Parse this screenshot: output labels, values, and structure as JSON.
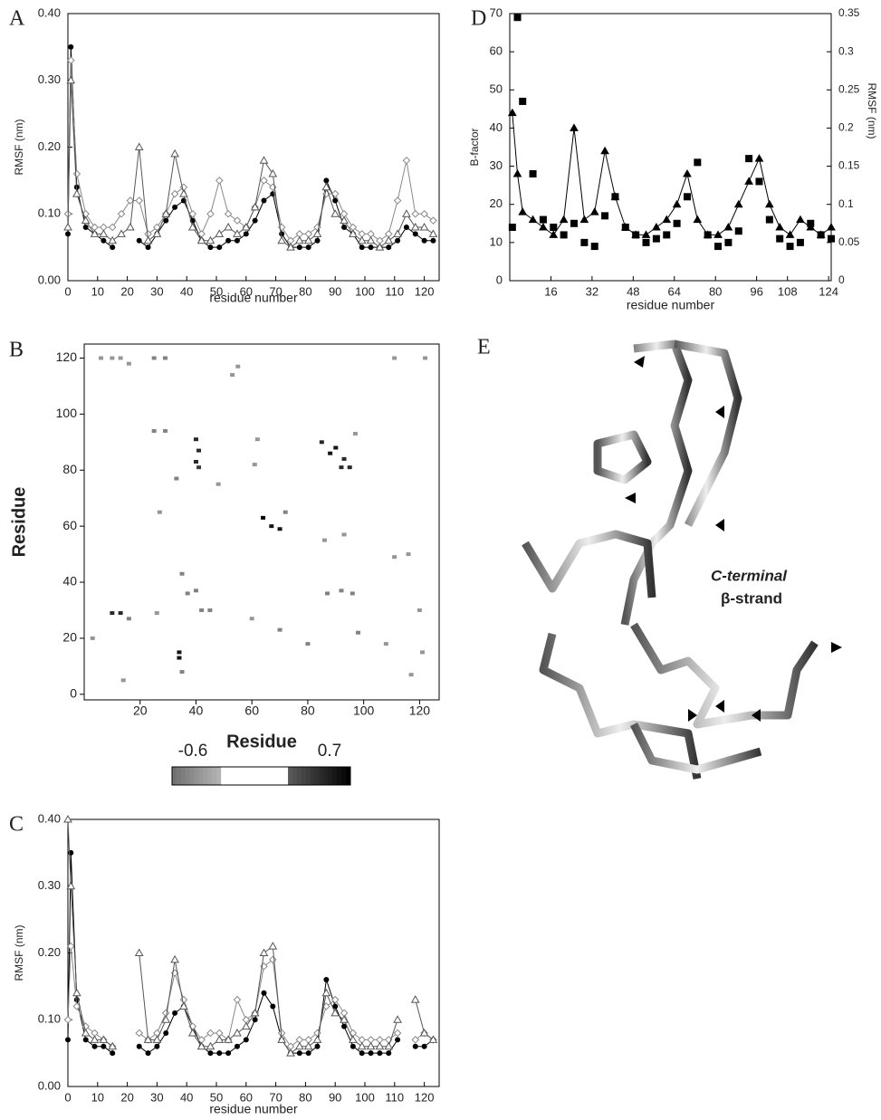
{
  "chart_data": [
    {
      "type": "line",
      "panel": "A",
      "ylabel": "RMSF (nm)",
      "xlabel": "residue number",
      "xlim": [
        0,
        125
      ],
      "xticks": [
        0,
        10,
        20,
        30,
        40,
        50,
        60,
        70,
        80,
        90,
        100,
        110,
        120
      ],
      "ylim": [
        0,
        0.4
      ],
      "yticks": [
        {
          "value": 0,
          "label": "0.00"
        },
        {
          "value": 0.1,
          "label": "0.10"
        },
        {
          "value": 0.2,
          "label": "0.20"
        },
        {
          "value": 0.3,
          "label": "0.30"
        },
        {
          "value": 0.4,
          "label": "0.40"
        }
      ],
      "x": [
        0,
        1,
        3,
        6,
        9,
        12,
        15,
        18,
        21,
        24,
        27,
        30,
        33,
        36,
        39,
        42,
        45,
        48,
        51,
        54,
        57,
        60,
        63,
        66,
        69,
        72,
        75,
        78,
        81,
        84,
        87,
        90,
        93,
        96,
        99,
        102,
        105,
        108,
        111,
        114,
        117,
        120,
        123
      ],
      "series": [
        {
          "color": "#000000",
          "marker": "circle",
          "values": [
            0.07,
            0.35,
            0.14,
            0.08,
            0.07,
            0.06,
            0.05,
            null,
            null,
            0.06,
            0.05,
            0.07,
            0.09,
            0.11,
            0.12,
            0.09,
            0.06,
            0.05,
            0.05,
            0.06,
            0.06,
            0.07,
            0.09,
            0.12,
            0.13,
            0.07,
            0.05,
            0.05,
            0.05,
            0.06,
            0.15,
            0.12,
            0.08,
            0.07,
            0.05,
            0.05,
            0.05,
            0.05,
            0.06,
            0.08,
            0.07,
            0.06,
            0.06
          ]
        },
        {
          "color": "#888888",
          "marker": "diamond",
          "values": [
            0.1,
            0.33,
            0.16,
            0.1,
            0.08,
            0.08,
            0.08,
            0.1,
            0.12,
            0.12,
            0.07,
            0.08,
            0.1,
            0.13,
            0.14,
            0.1,
            0.07,
            0.1,
            0.15,
            0.1,
            0.09,
            0.08,
            0.11,
            0.15,
            0.14,
            0.08,
            0.06,
            0.07,
            0.07,
            0.08,
            0.13,
            0.13,
            0.1,
            0.08,
            0.07,
            0.07,
            0.06,
            0.07,
            0.12,
            0.18,
            0.1,
            0.1,
            0.09
          ]
        },
        {
          "color": "#555555",
          "marker": "triangle",
          "values": [
            0.08,
            0.3,
            0.13,
            0.09,
            0.07,
            0.07,
            0.06,
            0.07,
            0.08,
            0.2,
            0.06,
            0.07,
            0.1,
            0.19,
            0.13,
            0.08,
            0.06,
            0.06,
            0.07,
            0.08,
            0.07,
            0.08,
            0.11,
            0.18,
            0.16,
            0.06,
            0.05,
            0.06,
            0.06,
            0.07,
            0.14,
            0.1,
            0.09,
            0.07,
            0.06,
            0.06,
            0.05,
            0.06,
            0.07,
            0.1,
            0.08,
            0.08,
            0.07
          ]
        }
      ]
    },
    {
      "type": "line",
      "panel": "D",
      "ylabel": "B-factor",
      "y2label": "RMSF (nm)",
      "xlabel": "residue number",
      "xlim": [
        0,
        125
      ],
      "xticks": [
        16,
        32,
        48,
        64,
        80,
        96,
        108,
        124
      ],
      "ylim": [
        0,
        70
      ],
      "yticks": [
        0,
        10,
        20,
        30,
        40,
        50,
        60,
        70
      ],
      "y2lim": [
        0,
        0.35
      ],
      "y2ticks": [
        0,
        0.05,
        0.1,
        0.15,
        0.2,
        0.25,
        0.3,
        0.35
      ],
      "x": [
        1,
        3,
        5,
        9,
        13,
        17,
        21,
        25,
        29,
        33,
        37,
        41,
        45,
        49,
        53,
        57,
        61,
        65,
        69,
        73,
        77,
        81,
        85,
        89,
        93,
        97,
        101,
        105,
        109,
        113,
        117,
        121,
        125
      ],
      "series": [
        {
          "color": "#000000",
          "marker": "square",
          "noline": true,
          "values": [
            14,
            69,
            47,
            28,
            16,
            14,
            12,
            15,
            10,
            9,
            17,
            22,
            14,
            12,
            10,
            11,
            12,
            15,
            22,
            31,
            12,
            9,
            10,
            13,
            32,
            26,
            16,
            11,
            9,
            10,
            15,
            12,
            11
          ]
        },
        {
          "color": "#000000",
          "marker": "solid-triangle",
          "axis": "y2",
          "values": [
            0.22,
            0.14,
            0.09,
            0.08,
            0.07,
            0.06,
            0.08,
            0.2,
            0.08,
            0.09,
            0.17,
            0.11,
            0.07,
            0.06,
            0.06,
            0.07,
            0.08,
            0.1,
            0.14,
            0.08,
            0.06,
            0.06,
            0.07,
            0.1,
            0.13,
            0.16,
            0.1,
            0.07,
            0.06,
            0.08,
            0.07,
            0.06,
            0.07
          ]
        }
      ]
    },
    {
      "type": "scatter",
      "panel": "B",
      "ylabel": "Residue",
      "xlabel": "Residue",
      "xlim": [
        0,
        127
      ],
      "xticks": [
        20,
        40,
        60,
        80,
        100,
        120
      ],
      "ylim": [
        -2,
        125
      ],
      "yticks": [
        0,
        20,
        40,
        60,
        80,
        100,
        120
      ],
      "colorbar_range": [
        -0.6,
        0.7
      ],
      "x": [
        6,
        10,
        13,
        25,
        29,
        55,
        53,
        111,
        122,
        16,
        25,
        29,
        40,
        41,
        40,
        41,
        33,
        48,
        62,
        61,
        64,
        67,
        70,
        72,
        27,
        85,
        88,
        90,
        93,
        95,
        92,
        97,
        86,
        93,
        35,
        37,
        40,
        42,
        45,
        10,
        13,
        16,
        26,
        34,
        34,
        35,
        14,
        70,
        80,
        87,
        92,
        96,
        98,
        111,
        116,
        120,
        121,
        117,
        108,
        60,
        3
      ],
      "y": [
        120,
        120,
        120,
        120,
        120,
        117,
        114,
        120,
        120,
        118,
        94,
        94,
        91,
        87,
        83,
        81,
        77,
        75,
        91,
        82,
        63,
        60,
        59,
        65,
        65,
        90,
        86,
        88,
        84,
        81,
        81,
        93,
        55,
        57,
        43,
        36,
        37,
        30,
        30,
        29,
        29,
        27,
        29,
        15,
        13,
        8,
        5,
        23,
        18,
        36,
        37,
        36,
        22,
        49,
        50,
        30,
        15,
        7,
        18,
        27,
        20
      ],
      "values": [
        -0.4,
        -0.4,
        -0.4,
        -0.5,
        -0.5,
        -0.4,
        -0.4,
        -0.4,
        -0.4,
        -0.4,
        -0.5,
        -0.5,
        0.5,
        0.5,
        0.5,
        0.4,
        -0.5,
        -0.4,
        -0.4,
        -0.4,
        0.7,
        0.6,
        0.6,
        -0.5,
        -0.4,
        0.5,
        0.6,
        0.6,
        0.5,
        0.5,
        0.5,
        -0.4,
        -0.4,
        -0.4,
        -0.5,
        -0.5,
        -0.5,
        -0.5,
        -0.5,
        0.5,
        0.5,
        -0.5,
        -0.4,
        0.6,
        0.6,
        -0.5,
        -0.4,
        -0.5,
        -0.5,
        -0.5,
        -0.5,
        -0.5,
        -0.5,
        -0.4,
        -0.4,
        -0.4,
        -0.4,
        -0.4,
        -0.4,
        -0.4,
        -0.4
      ]
    },
    {
      "type": "line",
      "panel": "C",
      "ylabel": "RMSF (nm)",
      "xlabel": "residue number",
      "xlim": [
        0,
        125
      ],
      "xticks": [
        0,
        10,
        20,
        30,
        40,
        50,
        60,
        70,
        80,
        90,
        100,
        110,
        120
      ],
      "ylim": [
        0,
        0.4
      ],
      "yticks": [
        {
          "value": 0,
          "label": "0.00"
        },
        {
          "value": 0.1,
          "label": "0.10"
        },
        {
          "value": 0.2,
          "label": "0.20"
        },
        {
          "value": 0.3,
          "label": "0.30"
        },
        {
          "value": 0.4,
          "label": "0.40"
        }
      ],
      "x": [
        0,
        1,
        3,
        6,
        9,
        12,
        15,
        18,
        21,
        24,
        27,
        30,
        33,
        36,
        39,
        42,
        45,
        48,
        51,
        54,
        57,
        60,
        63,
        66,
        69,
        72,
        75,
        78,
        81,
        84,
        87,
        90,
        93,
        96,
        99,
        102,
        105,
        108,
        111,
        114,
        117,
        120,
        123
      ],
      "series": [
        {
          "color": "#000000",
          "marker": "circle",
          "values": [
            0.07,
            0.35,
            0.13,
            0.07,
            0.06,
            0.06,
            0.05,
            null,
            null,
            0.06,
            0.05,
            0.06,
            0.08,
            0.11,
            0.12,
            0.09,
            0.06,
            0.05,
            0.05,
            0.05,
            0.06,
            0.07,
            0.1,
            0.14,
            0.12,
            0.07,
            0.05,
            0.05,
            0.05,
            0.06,
            0.16,
            0.12,
            0.09,
            0.06,
            0.05,
            0.05,
            0.05,
            0.05,
            0.07,
            null,
            0.06,
            0.06,
            0.07
          ]
        },
        {
          "color": "#888888",
          "marker": "diamond",
          "values": [
            0.1,
            0.21,
            0.12,
            0.09,
            0.08,
            0.07,
            0.06,
            null,
            null,
            0.08,
            0.07,
            0.08,
            0.11,
            0.17,
            0.13,
            0.09,
            0.07,
            0.08,
            0.08,
            0.07,
            0.13,
            0.1,
            0.11,
            0.18,
            0.19,
            0.08,
            0.06,
            0.07,
            0.07,
            0.08,
            0.12,
            0.13,
            0.11,
            0.08,
            0.07,
            0.07,
            0.07,
            0.07,
            0.08,
            null,
            0.07,
            0.08,
            0.07
          ]
        },
        {
          "color": "#555555",
          "marker": "triangle",
          "values": [
            0.4,
            0.3,
            0.14,
            0.08,
            0.07,
            0.07,
            0.06,
            null,
            null,
            0.2,
            0.07,
            0.07,
            0.1,
            0.19,
            0.12,
            0.08,
            0.06,
            0.06,
            0.07,
            0.07,
            0.08,
            0.09,
            0.11,
            0.2,
            0.21,
            0.07,
            0.05,
            0.06,
            0.06,
            0.07,
            0.14,
            0.11,
            0.1,
            0.07,
            0.06,
            0.06,
            0.06,
            0.06,
            0.1,
            null,
            0.13,
            0.08,
            0.07
          ]
        }
      ]
    }
  ],
  "panel_e": {
    "panel": "E",
    "annotation": [
      "C-terminal",
      "β-strand"
    ]
  }
}
